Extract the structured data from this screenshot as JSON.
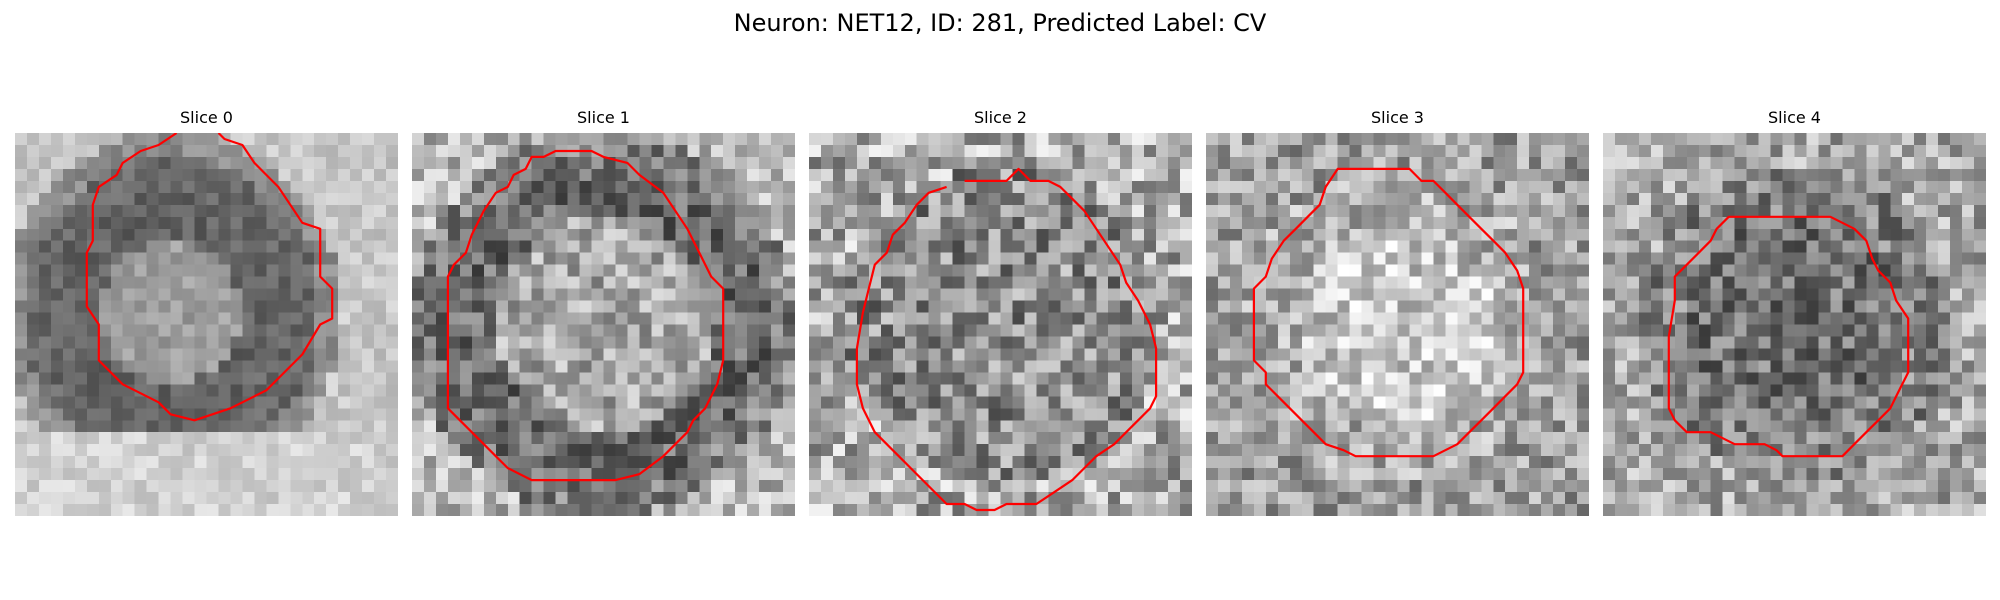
{
  "figure": {
    "title": "Neuron: NET12, ID: 281, Predicted Label: CV"
  },
  "panels": [
    {
      "title": "Slice 0",
      "style": "outer-dark-ring"
    },
    {
      "title": "Slice 1",
      "style": "dark-ring"
    },
    {
      "title": "Slice 2",
      "style": "uniform-noise"
    },
    {
      "title": "Slice 3",
      "style": "bright-center"
    },
    {
      "title": "Slice 4",
      "style": "dark-center"
    }
  ],
  "colors": {
    "contour": "#ff0000",
    "background": "#ffffff"
  }
}
